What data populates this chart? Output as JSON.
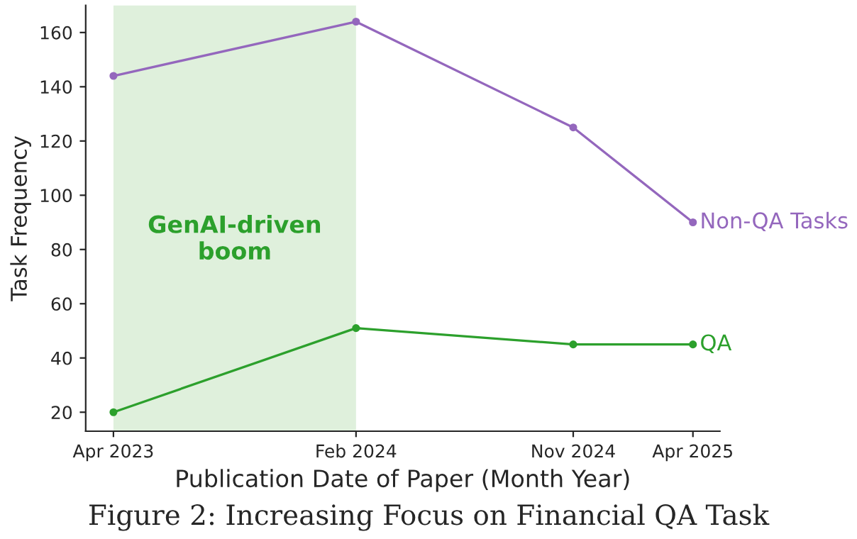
{
  "chart_data": {
    "type": "line",
    "xlabel": "Publication Date of Paper (Month Year)",
    "ylabel": "Task Frequency",
    "x": [
      "2023-04",
      "2024-02",
      "2024-11",
      "2025-04"
    ],
    "series": [
      {
        "name": "Non-QA Tasks",
        "color": "#9467bd",
        "values": [
          144,
          164,
          125,
          90
        ]
      },
      {
        "name": "QA",
        "color": "#2ca02c",
        "values": [
          20,
          51,
          45,
          45
        ]
      }
    ],
    "xlim": [
      "2023-02-25",
      "2025-05-05"
    ],
    "xticks": [
      {
        "value": "2023-04",
        "label": "Apr 2023"
      },
      {
        "value": "2024-02",
        "label": "Feb 2024"
      },
      {
        "value": "2024-11",
        "label": "Nov 2024"
      },
      {
        "value": "2025-04",
        "label": "Apr 2025"
      }
    ],
    "ylim": [
      13,
      170
    ],
    "yticks": [
      20,
      40,
      60,
      80,
      100,
      120,
      140,
      160
    ],
    "bands": [
      {
        "axis": "x",
        "from": "2023-04",
        "to": "2024-02",
        "label": "GenAI-driven\nboom",
        "color": "#dff0dc"
      }
    ],
    "marker": "circle",
    "line_style": "solid",
    "grid": false,
    "annotations": [
      "Figure 2: Increasing Focus on Financial QA Task"
    ]
  }
}
